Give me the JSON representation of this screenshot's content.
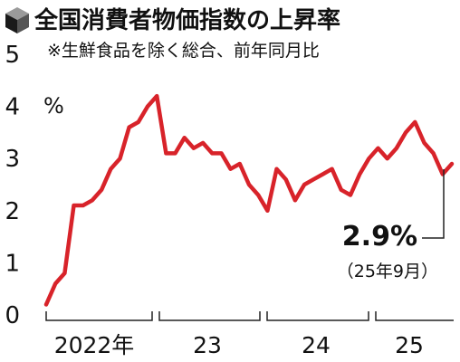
{
  "chart_data": {
    "type": "line",
    "title": "全国消費者物価指数の上昇率",
    "subtitle": "※生鮮食品を除く総合、前年同月比",
    "ylabel": "%",
    "ylim": [
      0,
      5
    ],
    "yticks": [
      "0",
      "1",
      "2",
      "3",
      "4",
      "5"
    ],
    "xticks": [
      "2022年",
      "23",
      "24",
      "25"
    ],
    "grid": false,
    "line_color": "#d8232a",
    "series": [
      {
        "values": [
          0.2,
          0.6,
          0.8,
          2.1,
          2.1,
          2.2,
          2.4,
          2.8,
          3.0,
          3.6,
          3.7,
          4.0,
          4.2,
          3.1,
          3.1,
          3.4,
          3.2,
          3.3,
          3.1,
          3.1,
          2.8,
          2.9,
          2.5,
          2.3,
          2.0,
          2.8,
          2.6,
          2.2,
          2.5,
          2.6,
          2.7,
          2.8,
          2.4,
          2.3,
          2.7,
          3.0,
          3.2,
          3.0,
          3.2,
          3.5,
          3.7,
          3.3,
          3.1,
          2.7,
          2.9
        ]
      }
    ],
    "annotation": {
      "value": "2.9%",
      "date": "（25年9月）"
    }
  }
}
